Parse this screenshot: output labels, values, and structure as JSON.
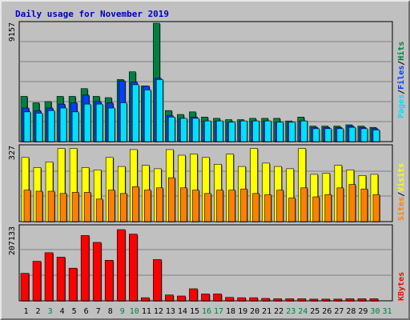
{
  "title": "Daily usage for November 2019",
  "colors": {
    "title": "#0000c0",
    "panel_bg": "#c0c0c0",
    "hits": "#008040",
    "files": "#0040ff",
    "pages": "#00e0ff",
    "visits": "#ffff00",
    "sites": "#ff8000",
    "kbytes": "#ff0000",
    "separator": "#000000"
  },
  "chart_data": [
    {
      "type": "bar",
      "panel": "hits-files-pages",
      "y_max_label": "9157",
      "ylim": [
        0,
        9157
      ],
      "legend": [
        "Pages",
        "/",
        "Files",
        "/",
        "Hits"
      ],
      "categories": [
        "1",
        "2",
        "3",
        "4",
        "5",
        "6",
        "7",
        "8",
        "9",
        "10",
        "11",
        "12",
        "13",
        "14",
        "15",
        "16",
        "17",
        "18",
        "19",
        "20",
        "21",
        "22",
        "23",
        "24",
        "25",
        "26",
        "27",
        "28",
        "29",
        "30",
        "31"
      ],
      "series": [
        {
          "name": "Hits",
          "values": [
            3500,
            3000,
            3100,
            3500,
            3500,
            4100,
            3500,
            3400,
            4800,
            5400,
            4300,
            9157,
            2400,
            2100,
            2300,
            1900,
            1800,
            1700,
            1700,
            1800,
            1800,
            1800,
            1600,
            1900,
            1200,
            1200,
            1200,
            1300,
            1200,
            1100,
            0
          ]
        },
        {
          "name": "Files",
          "values": [
            2600,
            2400,
            2600,
            2900,
            3000,
            3600,
            3100,
            3000,
            4700,
            4600,
            4300,
            4900,
            2000,
            1800,
            1900,
            1600,
            1600,
            1500,
            1600,
            1600,
            1600,
            1500,
            1500,
            1600,
            1100,
            1100,
            1100,
            1200,
            1100,
            1000,
            0
          ]
        },
        {
          "name": "Pages",
          "values": [
            2300,
            2200,
            2400,
            2600,
            2300,
            2900,
            2900,
            2600,
            3000,
            4400,
            4000,
            4800,
            1900,
            1800,
            1800,
            1600,
            1600,
            1500,
            1600,
            1600,
            1600,
            1500,
            1500,
            1600,
            1000,
            1000,
            1000,
            1100,
            1000,
            900,
            0
          ]
        }
      ]
    },
    {
      "type": "bar",
      "panel": "visits-sites",
      "y_max_label": "327",
      "ylim": [
        0,
        327
      ],
      "legend": [
        "Sites",
        "/",
        "Visits"
      ],
      "categories": [
        "1",
        "2",
        "3",
        "4",
        "5",
        "6",
        "7",
        "8",
        "9",
        "10",
        "11",
        "12",
        "13",
        "14",
        "15",
        "16",
        "17",
        "18",
        "19",
        "20",
        "21",
        "22",
        "23",
        "24",
        "25",
        "26",
        "27",
        "28",
        "29",
        "30",
        "31"
      ],
      "series": [
        {
          "name": "Visits",
          "values": [
            285,
            240,
            265,
            325,
            325,
            240,
            230,
            285,
            245,
            320,
            250,
            235,
            320,
            295,
            300,
            285,
            255,
            300,
            245,
            325,
            260,
            245,
            235,
            325,
            210,
            215,
            250,
            230,
            205,
            210,
            0
          ]
        },
        {
          "name": "Sites",
          "values": [
            140,
            135,
            135,
            125,
            130,
            130,
            100,
            140,
            125,
            155,
            140,
            150,
            195,
            150,
            140,
            125,
            140,
            140,
            145,
            125,
            120,
            140,
            105,
            150,
            110,
            120,
            150,
            165,
            145,
            120,
            0
          ]
        }
      ]
    },
    {
      "type": "bar",
      "panel": "kbytes",
      "y_max_label": "207133",
      "ylim": [
        0,
        207133
      ],
      "legend": [
        "KBytes"
      ],
      "categories": [
        "1",
        "2",
        "3",
        "4",
        "5",
        "6",
        "7",
        "8",
        "9",
        "10",
        "11",
        "12",
        "13",
        "14",
        "15",
        "16",
        "17",
        "18",
        "19",
        "20",
        "21",
        "22",
        "23",
        "24",
        "25",
        "26",
        "27",
        "28",
        "29",
        "30",
        "31"
      ],
      "series": [
        {
          "name": "KBytes",
          "values": [
            80000,
            115000,
            140000,
            127000,
            95000,
            190000,
            170000,
            118000,
            207133,
            194000,
            9000,
            120000,
            17000,
            14000,
            35000,
            20000,
            20000,
            10000,
            9000,
            9000,
            7000,
            6000,
            6000,
            6000,
            5000,
            5000,
            5000,
            6000,
            6000,
            6000,
            0
          ]
        }
      ]
    }
  ],
  "x_labels": [
    {
      "text": "1",
      "color": "#000000"
    },
    {
      "text": "2",
      "color": "#000000"
    },
    {
      "text": "3",
      "color": "#008040"
    },
    {
      "text": "4",
      "color": "#000000"
    },
    {
      "text": "5",
      "color": "#000000"
    },
    {
      "text": "6",
      "color": "#000000"
    },
    {
      "text": "7",
      "color": "#000000"
    },
    {
      "text": "8",
      "color": "#000000"
    },
    {
      "text": "9",
      "color": "#008040"
    },
    {
      "text": "10",
      "color": "#008040"
    },
    {
      "text": "11",
      "color": "#000000"
    },
    {
      "text": "12",
      "color": "#000000"
    },
    {
      "text": "13",
      "color": "#000000"
    },
    {
      "text": "14",
      "color": "#000000"
    },
    {
      "text": "15",
      "color": "#000000"
    },
    {
      "text": "16",
      "color": "#008040"
    },
    {
      "text": "17",
      "color": "#008040"
    },
    {
      "text": "18",
      "color": "#000000"
    },
    {
      "text": "19",
      "color": "#000000"
    },
    {
      "text": "20",
      "color": "#000000"
    },
    {
      "text": "21",
      "color": "#000000"
    },
    {
      "text": "22",
      "color": "#000000"
    },
    {
      "text": "23",
      "color": "#008040"
    },
    {
      "text": "24",
      "color": "#008040"
    },
    {
      "text": "25",
      "color": "#000000"
    },
    {
      "text": "26",
      "color": "#000000"
    },
    {
      "text": "27",
      "color": "#000000"
    },
    {
      "text": "28",
      "color": "#000000"
    },
    {
      "text": "29",
      "color": "#000000"
    },
    {
      "text": "30",
      "color": "#008040"
    },
    {
      "text": "31",
      "color": "#008040"
    }
  ]
}
